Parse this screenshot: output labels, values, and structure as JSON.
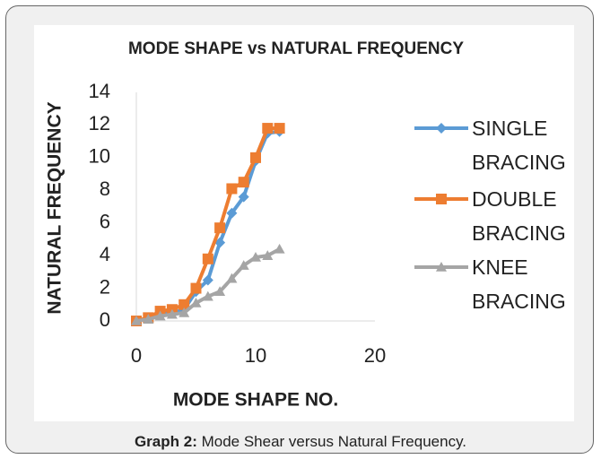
{
  "chart_data": {
    "type": "line",
    "title": "MODE SHAPE vs NATURAL FREQUENCY",
    "x_label": "MODE SHAPE NO.",
    "y_label": "NATURAL FREQUENCY",
    "x": [
      0,
      1,
      2,
      3,
      4,
      5,
      6,
      7,
      8,
      9,
      10,
      11,
      12
    ],
    "series": [
      {
        "name": "SINGLE BRACING",
        "color": "#5b9bd5",
        "marker": "diamond",
        "values": [
          0,
          0.2,
          0.4,
          0.5,
          0.7,
          1.8,
          2.5,
          4.8,
          6.6,
          7.6,
          9.8,
          11.5,
          11.6
        ]
      },
      {
        "name": "DOUBLE BRACING",
        "color": "#ed7d31",
        "marker": "square",
        "values": [
          0,
          0.2,
          0.6,
          0.7,
          1.0,
          2.0,
          3.8,
          5.7,
          8.1,
          8.5,
          10,
          11.8,
          11.8
        ]
      },
      {
        "name": "KNEE BRACING",
        "color": "#a5a5a5",
        "marker": "triangle",
        "values": [
          0,
          0.1,
          0.3,
          0.4,
          0.5,
          1.1,
          1.5,
          1.8,
          2.6,
          3.4,
          3.9,
          4.0,
          4.4
        ]
      }
    ],
    "xlim": [
      0,
      20
    ],
    "xticks": [
      0,
      10,
      20
    ],
    "ylim": [
      0,
      14
    ],
    "yticks": [
      0,
      2,
      4,
      6,
      8,
      10,
      12,
      14
    ],
    "grid": false,
    "legend": "right"
  },
  "caption": {
    "label": "Graph 2:",
    "text": "Mode Shear versus Natural Frequency."
  }
}
